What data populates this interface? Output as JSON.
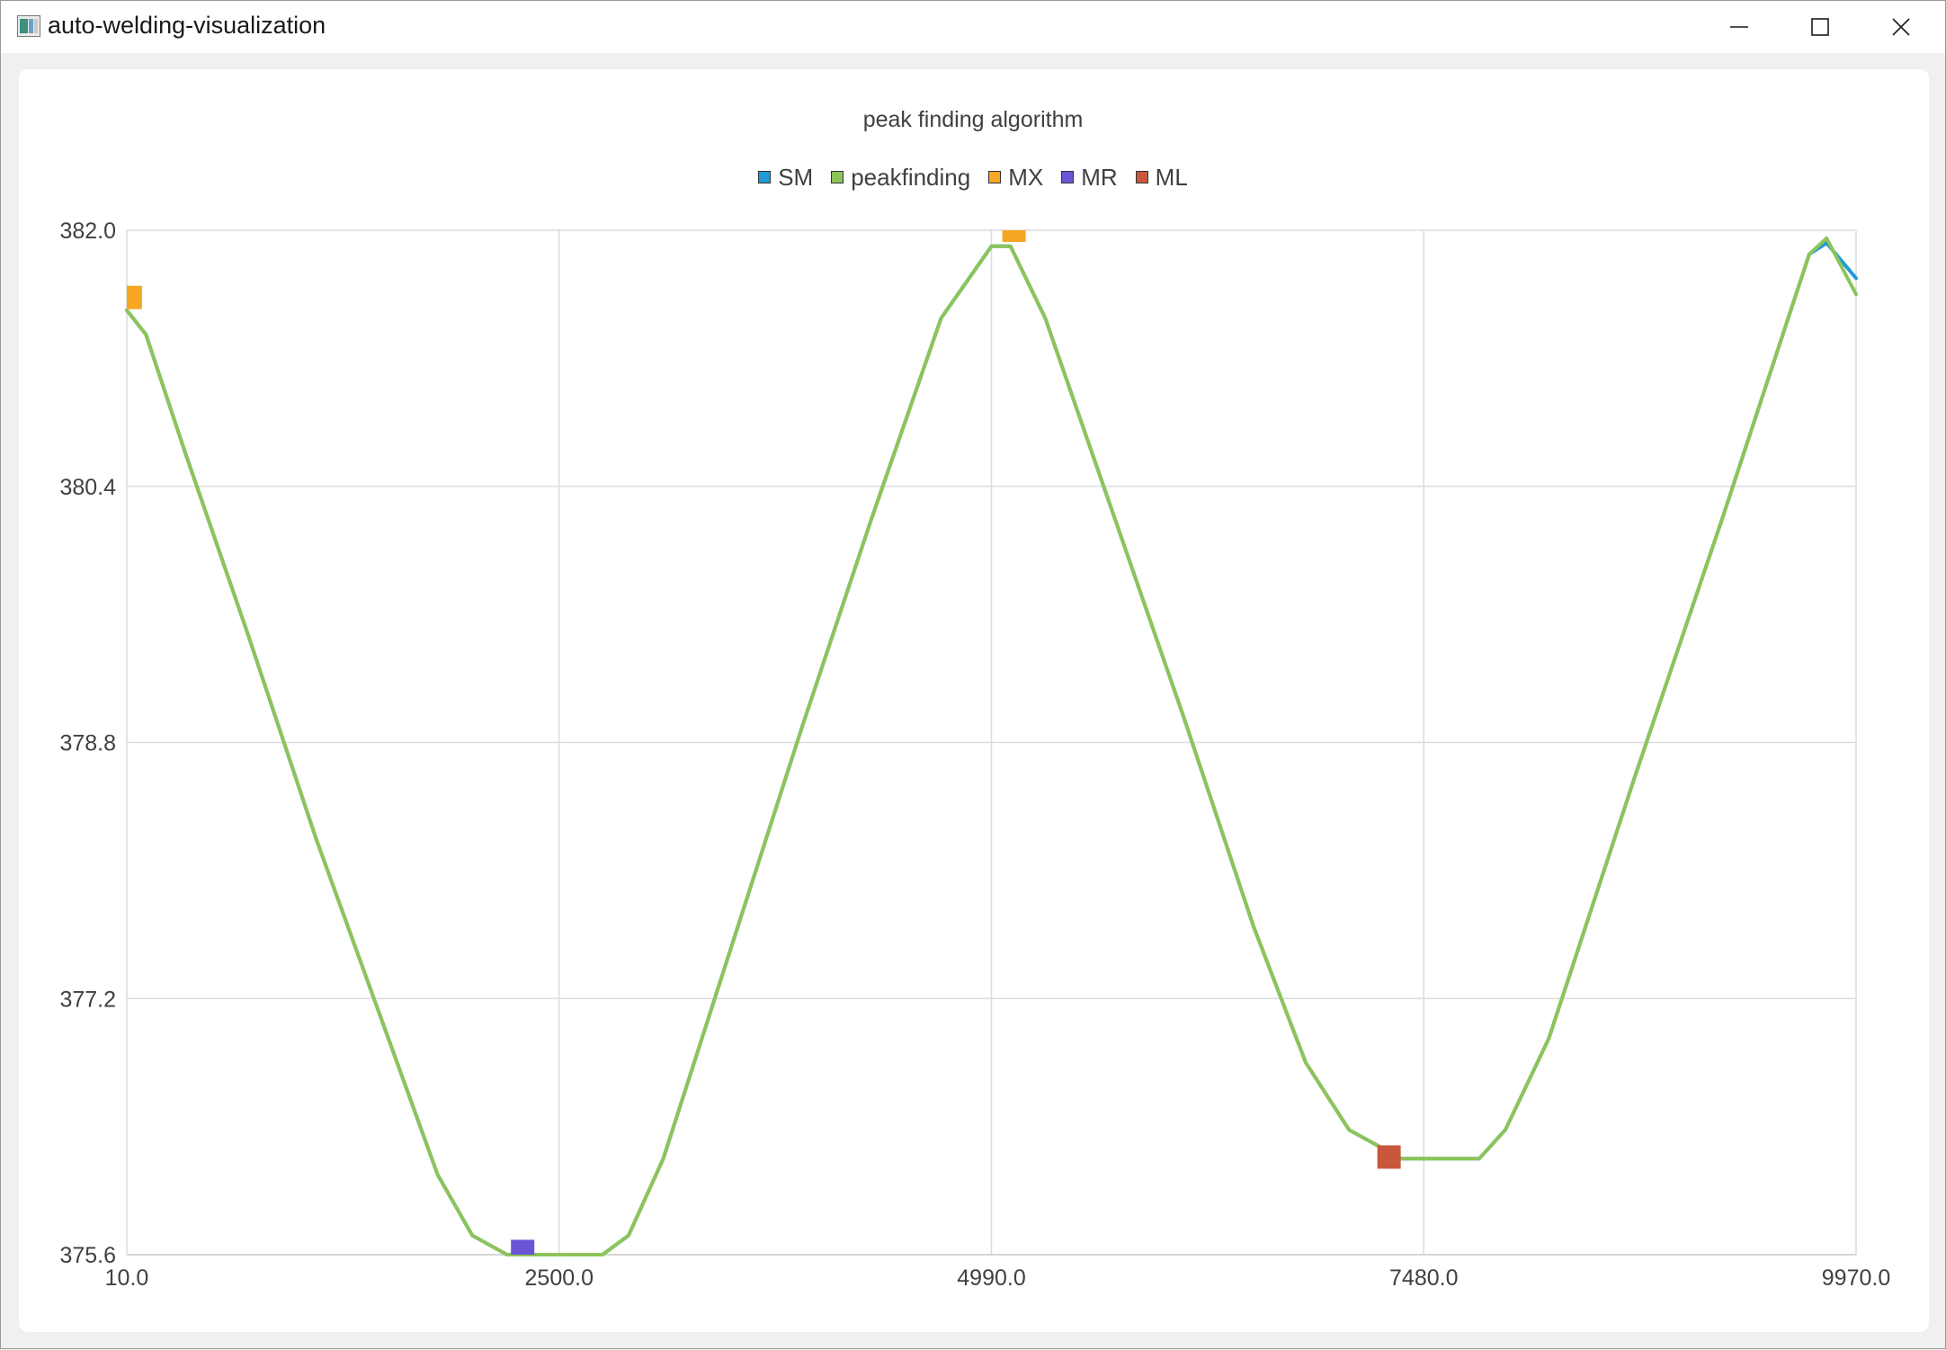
{
  "window": {
    "title": "auto-welding-visualization",
    "icon": "chart-app-icon",
    "controls": [
      "minimize-icon",
      "maximize-icon",
      "close-icon"
    ]
  },
  "chart_data": {
    "type": "line",
    "title": "peak finding algorithm",
    "legend_position": "top-center",
    "grid": true,
    "xlim": [
      10.0,
      9970.0
    ],
    "ylim": [
      375.6,
      382.0
    ],
    "x_ticks": [
      "10.0",
      "2500.0",
      "4990.0",
      "7480.0",
      "9970.0"
    ],
    "y_ticks": [
      "382.0",
      "380.4",
      "378.8",
      "377.2",
      "375.6"
    ],
    "series": [
      {
        "name": "SM",
        "kind": "line",
        "color": "#1f9ad6",
        "points": [
          [
            10,
            381.5
          ],
          [
            120,
            381.35
          ],
          [
            350,
            380.6
          ],
          [
            700,
            379.5
          ],
          [
            1100,
            378.2
          ],
          [
            1500,
            377.0
          ],
          [
            1800,
            376.1
          ],
          [
            2000,
            375.72
          ],
          [
            2200,
            375.6
          ],
          [
            2500,
            375.6
          ],
          [
            2750,
            375.6
          ],
          [
            2900,
            375.72
          ],
          [
            3100,
            376.2
          ],
          [
            3500,
            377.55
          ],
          [
            3900,
            378.9
          ],
          [
            4300,
            380.2
          ],
          [
            4700,
            381.45
          ],
          [
            4990,
            381.9
          ],
          [
            5100,
            381.9
          ],
          [
            5300,
            381.45
          ],
          [
            5700,
            380.2
          ],
          [
            6100,
            378.95
          ],
          [
            6500,
            377.65
          ],
          [
            6800,
            376.8
          ],
          [
            7050,
            376.38
          ],
          [
            7350,
            376.2
          ],
          [
            7600,
            376.2
          ],
          [
            7800,
            376.2
          ],
          [
            7950,
            376.38
          ],
          [
            8200,
            376.95
          ],
          [
            8700,
            378.6
          ],
          [
            9200,
            380.2
          ],
          [
            9700,
            381.85
          ],
          [
            9800,
            381.92
          ],
          [
            9970,
            381.7
          ]
        ]
      },
      {
        "name": "peakfinding",
        "kind": "line",
        "color": "#8dc45a",
        "points": [
          [
            10,
            381.5
          ],
          [
            120,
            381.35
          ],
          [
            350,
            380.6
          ],
          [
            700,
            379.5
          ],
          [
            1100,
            378.2
          ],
          [
            1500,
            377.0
          ],
          [
            1800,
            376.1
          ],
          [
            2000,
            375.72
          ],
          [
            2200,
            375.6
          ],
          [
            2500,
            375.6
          ],
          [
            2750,
            375.6
          ],
          [
            2900,
            375.72
          ],
          [
            3100,
            376.2
          ],
          [
            3500,
            377.55
          ],
          [
            3900,
            378.9
          ],
          [
            4300,
            380.2
          ],
          [
            4700,
            381.45
          ],
          [
            4990,
            381.9
          ],
          [
            5100,
            381.9
          ],
          [
            5300,
            381.45
          ],
          [
            5700,
            380.2
          ],
          [
            6100,
            378.95
          ],
          [
            6500,
            377.65
          ],
          [
            6800,
            376.8
          ],
          [
            7050,
            376.38
          ],
          [
            7350,
            376.2
          ],
          [
            7600,
            376.2
          ],
          [
            7800,
            376.2
          ],
          [
            7950,
            376.38
          ],
          [
            8200,
            376.95
          ],
          [
            8700,
            378.6
          ],
          [
            9200,
            380.2
          ],
          [
            9700,
            381.85
          ],
          [
            9800,
            381.95
          ],
          [
            9970,
            381.6
          ]
        ]
      },
      {
        "name": "MX",
        "kind": "marker",
        "color": "#f5a623",
        "points": [
          [
            30,
            381.58
          ],
          [
            5120,
            382.0
          ]
        ]
      },
      {
        "name": "MR",
        "kind": "marker",
        "color": "#6a55d6",
        "points": [
          [
            2290,
            375.62
          ]
        ]
      },
      {
        "name": "ML",
        "kind": "marker",
        "color": "#c9573d",
        "points": [
          [
            7280,
            376.21
          ]
        ]
      }
    ]
  }
}
